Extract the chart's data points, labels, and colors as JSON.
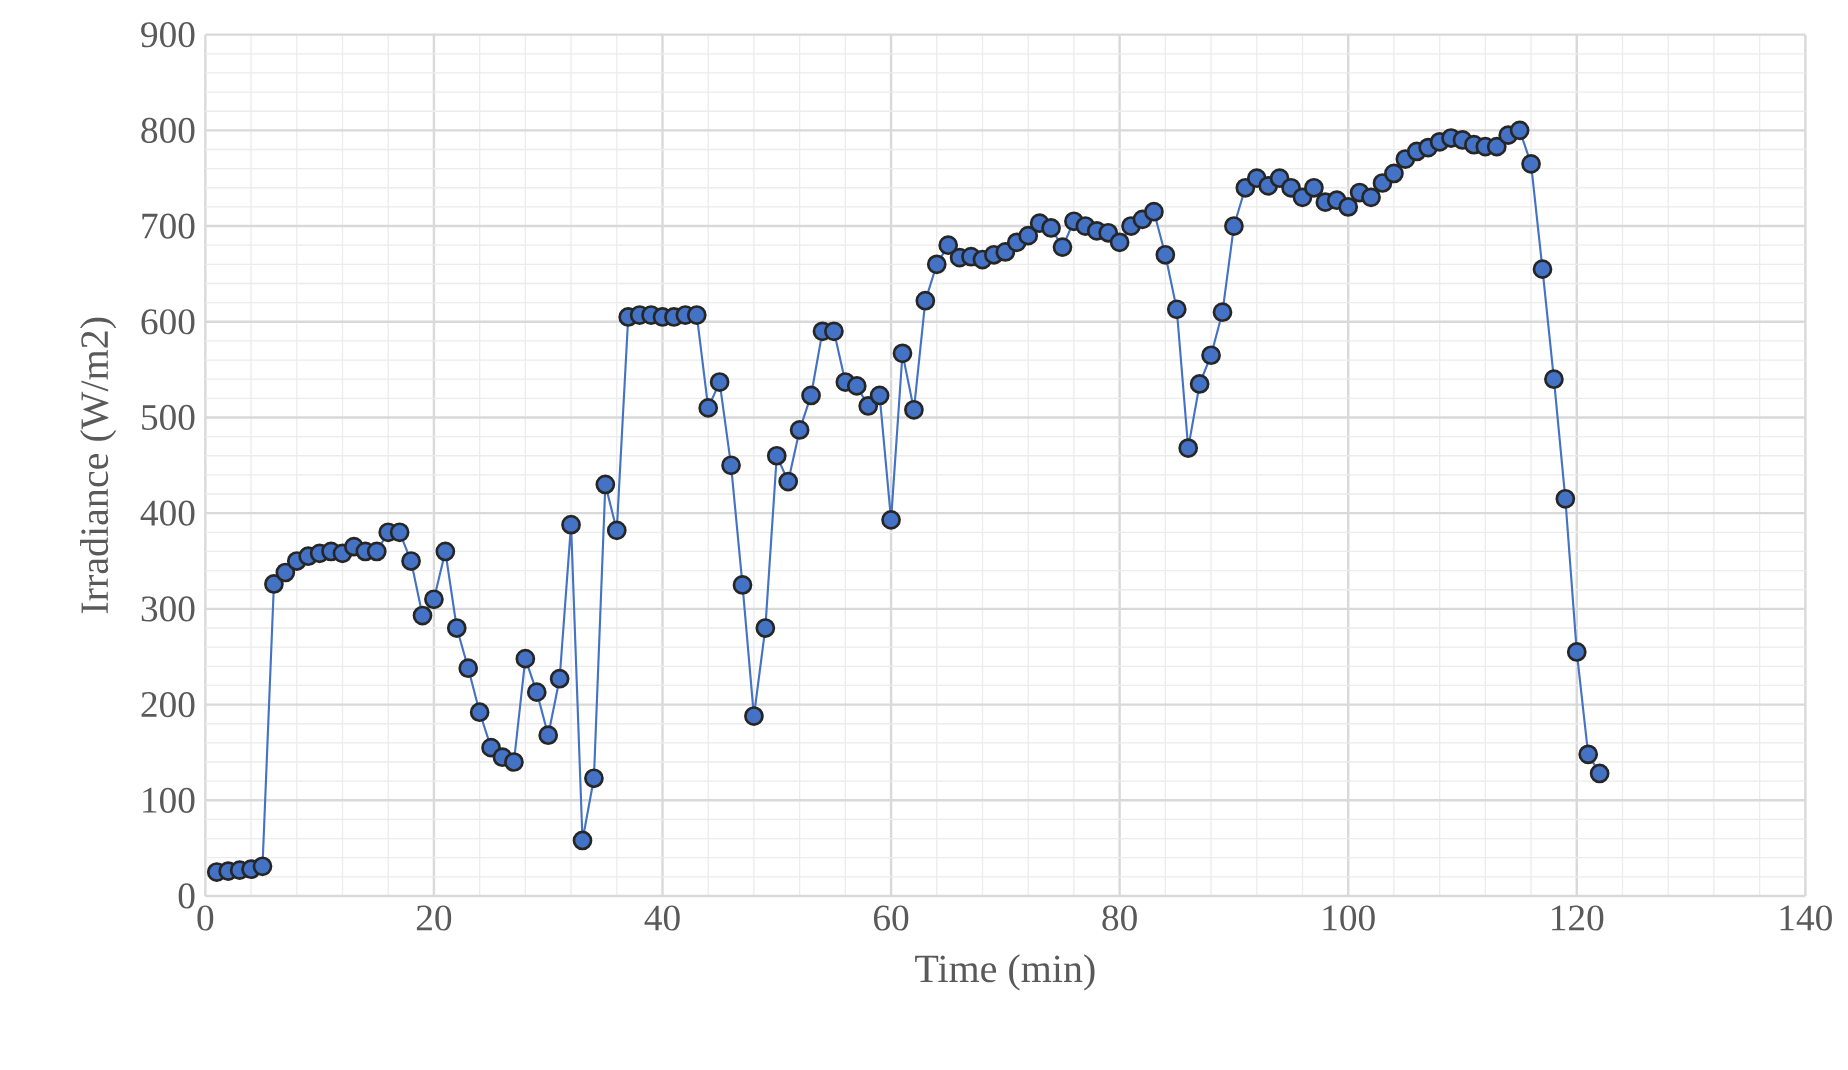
{
  "chart_data": {
    "type": "line",
    "xlabel": "Time (min)",
    "ylabel": "Irradiance (W/m2)",
    "x": [
      1,
      2,
      3,
      4,
      5,
      6,
      7,
      8,
      9,
      10,
      11,
      12,
      13,
      14,
      15,
      16,
      17,
      18,
      19,
      20,
      21,
      22,
      23,
      24,
      25,
      26,
      27,
      28,
      29,
      30,
      31,
      32,
      33,
      34,
      35,
      36,
      37,
      38,
      39,
      40,
      41,
      42,
      43,
      44,
      45,
      46,
      47,
      48,
      49,
      50,
      51,
      52,
      53,
      54,
      55,
      56,
      57,
      58,
      59,
      60,
      61,
      62,
      63,
      64,
      65,
      66,
      67,
      68,
      69,
      70,
      71,
      72,
      73,
      74,
      75,
      76,
      77,
      78,
      79,
      80,
      81,
      82,
      83,
      84,
      85,
      86,
      87,
      88,
      89,
      90,
      91,
      92,
      93,
      94,
      95,
      96,
      97,
      98,
      99,
      100,
      101,
      102,
      103,
      104,
      105,
      106,
      107,
      108,
      109,
      110,
      111,
      112,
      113,
      114,
      115,
      116,
      117,
      118,
      119,
      120,
      121,
      122
    ],
    "series": [
      {
        "color": "#4472c4",
        "values": [
          25,
          26,
          27,
          28,
          31,
          326,
          338,
          350,
          355,
          358,
          360,
          358,
          365,
          360,
          360,
          380,
          380,
          350,
          293,
          310,
          360,
          280,
          238,
          192,
          155,
          145,
          140,
          248,
          213,
          168,
          227,
          388,
          58,
          123,
          430,
          382,
          605,
          607,
          607,
          605,
          605,
          607,
          607,
          510,
          537,
          450,
          325,
          188,
          280,
          460,
          433,
          487,
          523,
          590,
          590,
          537,
          533,
          512,
          523,
          393,
          567,
          508,
          622,
          660,
          680,
          667,
          668,
          665,
          670,
          673,
          683,
          690,
          703,
          698,
          678,
          705,
          700,
          695,
          693,
          683,
          700,
          707,
          715,
          670,
          613,
          468,
          535,
          565,
          610,
          700,
          740,
          750,
          742,
          750,
          740,
          730,
          740,
          725,
          727,
          720,
          735,
          730,
          745,
          755,
          770,
          778,
          782,
          788,
          792,
          790,
          785,
          783,
          783,
          795,
          800,
          765,
          655,
          540,
          415,
          255,
          148,
          128
        ]
      }
    ],
    "xlim": [
      0,
      140
    ],
    "xticks": [
      0,
      20,
      40,
      60,
      80,
      100,
      120,
      140
    ],
    "ylim": [
      0,
      900
    ],
    "yticks": [
      0,
      100,
      200,
      300,
      400,
      500,
      600,
      700,
      800,
      900
    ],
    "grid": true,
    "marker": "circle",
    "line_style": "solid"
  }
}
